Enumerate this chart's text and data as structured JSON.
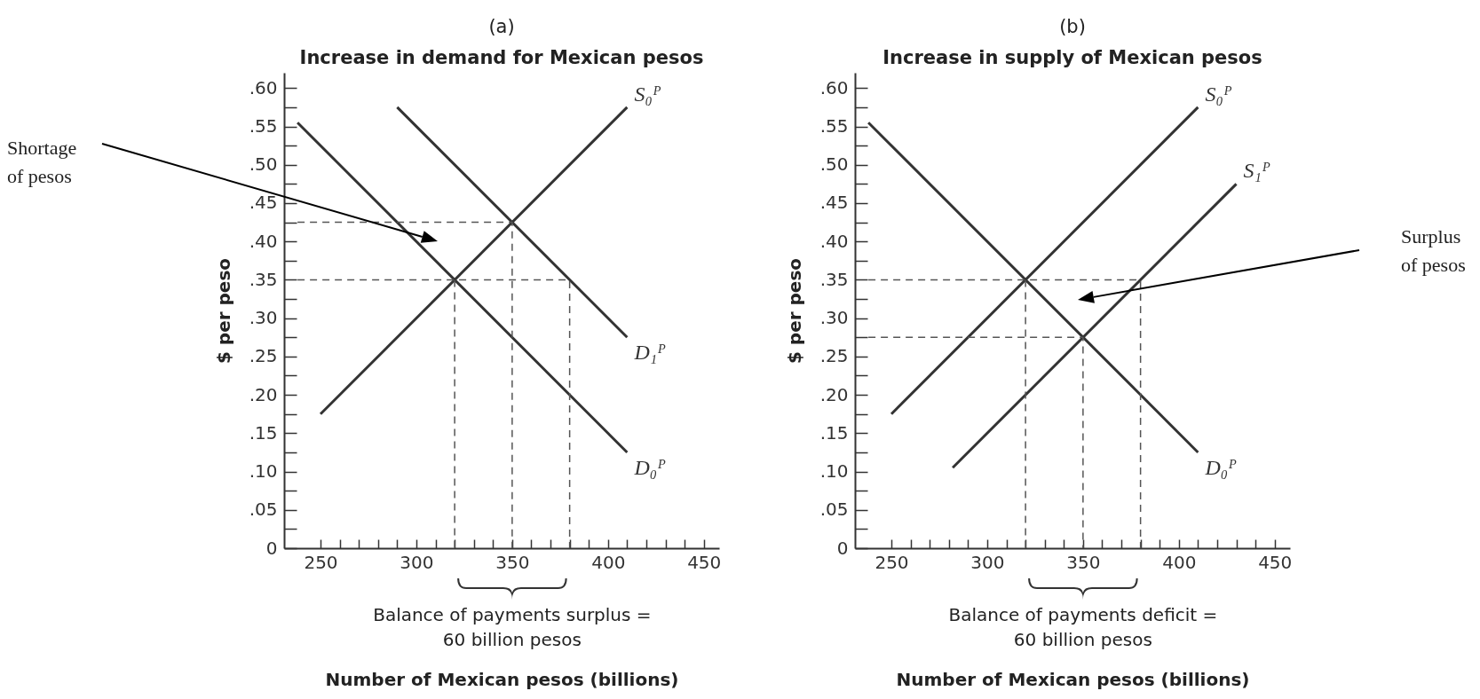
{
  "chart_data": [
    {
      "type": "line",
      "title": "(a)",
      "subtitle": "Increase in demand for Mexican pesos",
      "xlabel": "Number of Mexican pesos (billions)",
      "ylabel": "$ per peso",
      "xlim": [
        231,
        458
      ],
      "ylim": [
        0,
        0.62
      ],
      "xticks": [
        250,
        {
          "value": 260,
          "label": null
        },
        {
          "value": 270,
          "label": null
        },
        {
          "value": 280,
          "label": null
        },
        {
          "value": 290,
          "label": null
        },
        300,
        {
          "value": 310,
          "label": null
        },
        {
          "value": 320,
          "label": null
        },
        {
          "value": 330,
          "label": null
        },
        {
          "value": 340,
          "label": null
        },
        350,
        {
          "value": 360,
          "label": null
        },
        {
          "value": 370,
          "label": null
        },
        {
          "value": 380,
          "label": null
        },
        {
          "value": 390,
          "label": null
        },
        400,
        {
          "value": 410,
          "label": null
        },
        {
          "value": 420,
          "label": null
        },
        {
          "value": 430,
          "label": null
        },
        {
          "value": 440,
          "label": null
        },
        450
      ],
      "yticks": [
        0,
        {
          "value": 0.025,
          "label": null
        },
        {
          "value": 0.05,
          "label": ".05"
        },
        {
          "value": 0.075,
          "label": null
        },
        {
          "value": 0.1,
          "label": ".10"
        },
        {
          "value": 0.125,
          "label": null
        },
        {
          "value": 0.15,
          "label": ".15"
        },
        {
          "value": 0.175,
          "label": null
        },
        {
          "value": 0.2,
          "label": ".20"
        },
        {
          "value": 0.225,
          "label": null
        },
        {
          "value": 0.25,
          "label": ".25"
        },
        {
          "value": 0.275,
          "label": null
        },
        {
          "value": 0.3,
          "label": ".30"
        },
        {
          "value": 0.325,
          "label": null
        },
        {
          "value": 0.35,
          "label": ".35"
        },
        {
          "value": 0.375,
          "label": null
        },
        {
          "value": 0.4,
          "label": ".40"
        },
        {
          "value": 0.425,
          "label": null
        },
        {
          "value": 0.45,
          "label": ".45"
        },
        {
          "value": 0.475,
          "label": null
        },
        {
          "value": 0.5,
          "label": ".50"
        },
        {
          "value": 0.525,
          "label": null
        },
        {
          "value": 0.55,
          "label": ".55"
        },
        {
          "value": 0.575,
          "label": null
        },
        {
          "value": 0.6,
          "label": ".60"
        }
      ],
      "series": [
        {
          "name": "S₀ᴾ",
          "color": "#333333",
          "x": [
            250,
            410
          ],
          "values": [
            0.175,
            0.575
          ]
        },
        {
          "name": "D₁ᴾ",
          "color": "#333333",
          "x": [
            290,
            410
          ],
          "values": [
            0.575,
            0.275
          ]
        },
        {
          "name": "D₀ᴾ",
          "color": "#333333",
          "x": [
            238,
            410
          ],
          "values": [
            0.555,
            0.125
          ]
        },
        {
          "color": "#555555",
          "line_style": "dashed",
          "x": [
            238,
            350,
            350
          ],
          "values": [
            0.425,
            0.425,
            0
          ]
        },
        {
          "color": "#555555",
          "line_style": "dashed",
          "x": [
            238,
            380,
            380
          ],
          "values": [
            0.35,
            0.35,
            0
          ]
        },
        {
          "color": "#555555",
          "line_style": "dashed",
          "x": [
            320,
            320
          ],
          "values": [
            0.35,
            0
          ]
        }
      ],
      "annotations": [
        "Shortage\nof pesos",
        "Balance of payments surplus =\n60 billion pesos"
      ]
    },
    {
      "type": "line",
      "title": "(b)",
      "subtitle": "Increase in supply of Mexican pesos",
      "xlabel": "Number of Mexican pesos (billions)",
      "ylabel": "$ per peso",
      "xlim": [
        231,
        458
      ],
      "ylim": [
        0,
        0.62
      ],
      "xticks": [
        250,
        {
          "value": 260,
          "label": null
        },
        {
          "value": 270,
          "label": null
        },
        {
          "value": 280,
          "label": null
        },
        {
          "value": 290,
          "label": null
        },
        300,
        {
          "value": 310,
          "label": null
        },
        {
          "value": 320,
          "label": null
        },
        {
          "value": 330,
          "label": null
        },
        {
          "value": 340,
          "label": null
        },
        350,
        {
          "value": 360,
          "label": null
        },
        {
          "value": 370,
          "label": null
        },
        {
          "value": 380,
          "label": null
        },
        {
          "value": 390,
          "label": null
        },
        400,
        {
          "value": 410,
          "label": null
        },
        {
          "value": 420,
          "label": null
        },
        {
          "value": 430,
          "label": null
        },
        {
          "value": 440,
          "label": null
        },
        450
      ],
      "yticks": [
        0,
        {
          "value": 0.025,
          "label": null
        },
        {
          "value": 0.05,
          "label": ".05"
        },
        {
          "value": 0.075,
          "label": null
        },
        {
          "value": 0.1,
          "label": ".10"
        },
        {
          "value": 0.125,
          "label": null
        },
        {
          "value": 0.15,
          "label": ".15"
        },
        {
          "value": 0.175,
          "label": null
        },
        {
          "value": 0.2,
          "label": ".20"
        },
        {
          "value": 0.225,
          "label": null
        },
        {
          "value": 0.25,
          "label": ".25"
        },
        {
          "value": 0.275,
          "label": null
        },
        {
          "value": 0.3,
          "label": ".30"
        },
        {
          "value": 0.325,
          "label": null
        },
        {
          "value": 0.35,
          "label": ".35"
        },
        {
          "value": 0.375,
          "label": null
        },
        {
          "value": 0.4,
          "label": ".40"
        },
        {
          "value": 0.425,
          "label": null
        },
        {
          "value": 0.45,
          "label": ".45"
        },
        {
          "value": 0.475,
          "label": null
        },
        {
          "value": 0.5,
          "label": ".50"
        },
        {
          "value": 0.525,
          "label": null
        },
        {
          "value": 0.55,
          "label": ".55"
        },
        {
          "value": 0.575,
          "label": null
        },
        {
          "value": 0.6,
          "label": ".60"
        }
      ],
      "series": [
        {
          "name": "S₀ᴾ",
          "color": "#333333",
          "x": [
            250,
            410
          ],
          "values": [
            0.175,
            0.575
          ]
        },
        {
          "name": "S₁ᴾ",
          "color": "#333333",
          "x": [
            282,
            430
          ],
          "values": [
            0.105,
            0.475
          ]
        },
        {
          "name": "D₀ᴾ",
          "color": "#333333",
          "x": [
            238,
            410
          ],
          "values": [
            0.555,
            0.125
          ]
        },
        {
          "color": "#555555",
          "line_style": "dashed",
          "x": [
            238,
            380,
            380
          ],
          "values": [
            0.35,
            0.35,
            0
          ]
        },
        {
          "color": "#555555",
          "line_style": "dashed",
          "x": [
            238,
            350,
            350
          ],
          "values": [
            0.275,
            0.275,
            0
          ]
        },
        {
          "color": "#555555",
          "line_style": "dashed",
          "x": [
            320,
            320
          ],
          "values": [
            0.35,
            0
          ]
        }
      ],
      "annotations": [
        "Surplus\nof pesos",
        "Balance of payments deficit =\n60 billion pesos"
      ]
    }
  ]
}
